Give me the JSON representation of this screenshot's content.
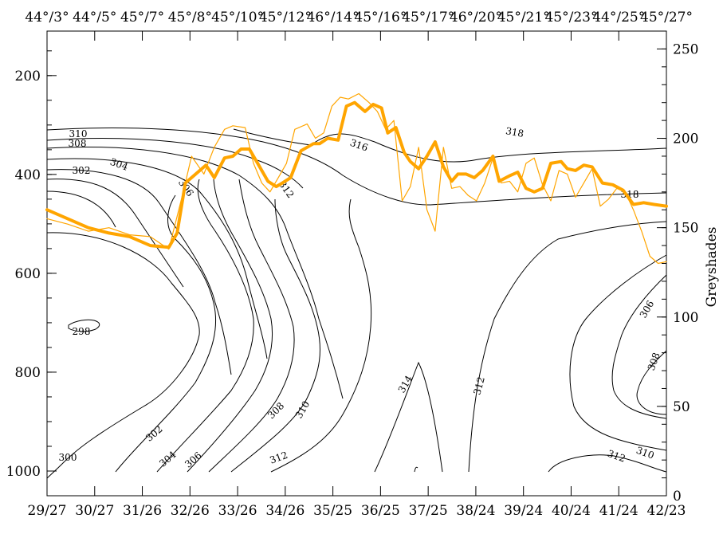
{
  "chart_data": {
    "type": "line",
    "title": "",
    "top_tick_labels": [
      "44°/3°",
      "44°/5°",
      "45°/7°",
      "45°/8°",
      "45°/10°",
      "45°/12°",
      "46°/14°",
      "45°/16°",
      "45°/17°",
      "46°/20°",
      "45°/21°",
      "45°/23°",
      "44°/25°",
      "45°/27°"
    ],
    "bottom_tick_labels": [
      "29/27",
      "30/27",
      "31/26",
      "32/26",
      "33/26",
      "34/26",
      "35/25",
      "36/25",
      "37/25",
      "38/24",
      "39/24",
      "40/24",
      "41/24",
      "42/23"
    ],
    "left_axis": {
      "label": "",
      "reversed": true,
      "ylim": [
        1050,
        110
      ],
      "ticks": [
        200,
        400,
        600,
        800,
        1000
      ]
    },
    "right_axis": {
      "label": "Greyshades",
      "ylim": [
        0,
        260
      ],
      "ticks": [
        0,
        50,
        100,
        150,
        200,
        250
      ]
    },
    "x_range": [
      0,
      15
    ],
    "grid": false,
    "colors": {
      "contour": "#000000",
      "series": "#FFA500"
    },
    "contour_labels": [
      "298",
      "300",
      "302",
      "302",
      "304",
      "304",
      "306",
      "306",
      "306",
      "308",
      "308",
      "308",
      "310",
      "310",
      "310",
      "312",
      "312",
      "312",
      "312",
      "314",
      "316",
      "318",
      "318"
    ],
    "series": [
      {
        "style": "thick",
        "x": [
          0,
          0.5,
          1.0,
          1.5,
          2.0,
          2.5,
          2.95,
          3.15,
          3.35,
          3.6,
          3.85,
          4.05,
          4.3,
          4.5,
          4.7,
          4.9,
          5.1,
          5.35,
          5.55,
          5.7,
          5.9,
          6.15,
          6.45,
          6.6,
          6.8,
          7.05,
          7.25,
          7.45,
          7.7,
          7.9,
          8.1,
          8.25,
          8.45,
          8.65,
          8.8,
          9.0,
          9.2,
          9.4,
          9.6,
          9.8,
          9.95,
          10.15,
          10.35,
          10.55,
          10.8,
          10.95,
          11.2,
          11.4,
          11.6,
          11.8,
          12.0,
          12.2,
          12.45,
          12.6,
          12.8,
          13.0,
          13.2,
          13.45,
          13.7,
          13.95,
          14.2,
          14.45,
          14.7,
          15.0
        ],
        "y": [
          160,
          155,
          150,
          147,
          145,
          140,
          139,
          147,
          175,
          180,
          185,
          178,
          189,
          190,
          194,
          194,
          186,
          176,
          173,
          175,
          178,
          193,
          197,
          197,
          200,
          199,
          218,
          220,
          215,
          219,
          217,
          203,
          206,
          192,
          187,
          183,
          190,
          198,
          184,
          176,
          180,
          180,
          178,
          182,
          190,
          176,
          179,
          181,
          172,
          170,
          172,
          186,
          187,
          183,
          182,
          185,
          184,
          175,
          174,
          171,
          163,
          164,
          163,
          162
        ]
      },
      {
        "style": "thin",
        "x": [
          0,
          0.5,
          1.0,
          1.5,
          2.0,
          2.5,
          2.95,
          3.3,
          3.5,
          3.8,
          4.05,
          4.3,
          4.5,
          4.8,
          5.0,
          5.2,
          5.4,
          5.6,
          5.8,
          6.0,
          6.3,
          6.5,
          6.7,
          6.9,
          7.1,
          7.3,
          7.55,
          7.8,
          8.0,
          8.2,
          8.4,
          8.6,
          8.8,
          9.0,
          9.2,
          9.4,
          9.6,
          9.8,
          10.0,
          10.2,
          10.4,
          10.6,
          10.8,
          11.0,
          11.2,
          11.4,
          11.6,
          11.8,
          12.0,
          12.2,
          12.4,
          12.6,
          12.8,
          13.0,
          13.2,
          13.4,
          13.6,
          13.8,
          14.0,
          14.2,
          14.4,
          14.6,
          14.8,
          15.0
        ],
        "y": [
          155,
          152,
          148,
          150,
          146,
          145,
          138,
          170,
          190,
          180,
          195,
          205,
          207,
          206,
          186,
          175,
          170,
          178,
          186,
          205,
          208,
          200,
          203,
          218,
          223,
          222,
          225,
          220,
          215,
          205,
          210,
          165,
          173,
          195,
          160,
          148,
          195,
          172,
          173,
          168,
          165,
          175,
          189,
          175,
          176,
          170,
          186,
          189,
          174,
          165,
          182,
          180,
          167,
          175,
          183,
          162,
          166,
          172,
          170,
          160,
          148,
          134,
          130,
          131
        ]
      }
    ]
  }
}
